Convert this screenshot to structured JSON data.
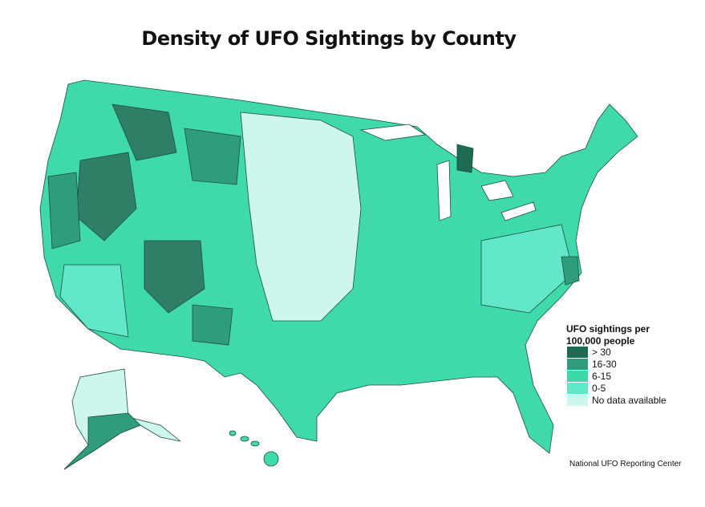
{
  "title": "Density of UFO Sightings by County",
  "legend": {
    "title": "UFO sightings per 100,000 people",
    "items": [
      {
        "label": "> 30",
        "color": "#1d6b52"
      },
      {
        "label": "16-30",
        "color": "#2f9c7c"
      },
      {
        "label": "6-15",
        "color": "#3cd8aa"
      },
      {
        "label": "0-5",
        "color": "#62e8c9"
      },
      {
        "label": "No data available",
        "color": "#cdf7ee"
      }
    ]
  },
  "source": "National UFO Reporting Center"
}
